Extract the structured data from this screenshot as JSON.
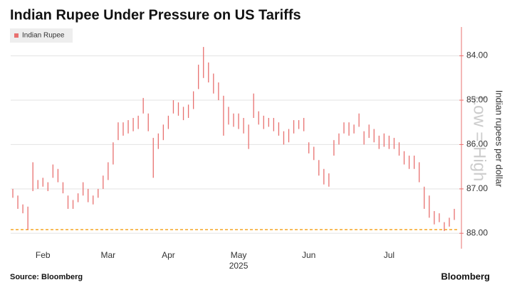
{
  "chart_data": {
    "type": "range-bar",
    "title": "Indian Rupee Under Pressure on US Tariffs",
    "source": "Source: Bloomberg",
    "logo": "Bloomberg",
    "y_label": "Indian rupees per dollar",
    "watermark": "Low = High",
    "year_label": "2025",
    "y_inverted": true,
    "ylim": [
      83.35,
      88.3
    ],
    "yticks": [
      {
        "value": 84,
        "label": "84.00"
      },
      {
        "value": 85,
        "label": "85.00"
      },
      {
        "value": 86,
        "label": "86.00"
      },
      {
        "value": 87,
        "label": "87.00"
      },
      {
        "value": 88,
        "label": "88.00"
      }
    ],
    "grid": true,
    "reference_line": {
      "value": 87.92,
      "color": "#f5a623"
    },
    "categories": [
      null,
      null,
      null,
      null,
      null,
      null,
      "Feb",
      null,
      null,
      null,
      null,
      null,
      null,
      null,
      null,
      null,
      null,
      null,
      null,
      "Mar",
      null,
      null,
      null,
      null,
      null,
      null,
      null,
      null,
      null,
      null,
      null,
      "Apr",
      null,
      null,
      null,
      null,
      null,
      null,
      null,
      null,
      null,
      null,
      null,
      null,
      null,
      "May",
      null,
      null,
      null,
      null,
      null,
      null,
      null,
      null,
      null,
      null,
      null,
      null,
      null,
      "Jun",
      null,
      null,
      null,
      null,
      null,
      null,
      null,
      null,
      null,
      null,
      null,
      null,
      null,
      null,
      null,
      "Jul",
      null,
      null,
      null,
      null,
      null,
      null,
      null,
      null,
      null,
      null,
      null,
      null,
      null
    ],
    "series": [
      {
        "name": "Indian Rupee",
        "color": "#e8706f",
        "high": [
          87.2,
          87.45,
          87.55,
          87.92,
          87.05,
          87.0,
          86.95,
          87.05,
          86.75,
          86.85,
          87.1,
          87.45,
          87.45,
          87.3,
          87.15,
          87.3,
          87.35,
          87.2,
          87.0,
          86.8,
          86.45,
          85.9,
          85.8,
          85.75,
          85.7,
          85.65,
          85.3,
          85.7,
          86.75,
          86.1,
          85.9,
          85.65,
          85.3,
          85.35,
          85.45,
          85.4,
          85.2,
          84.75,
          84.5,
          84.6,
          84.85,
          85.0,
          85.8,
          85.55,
          85.6,
          85.65,
          85.75,
          86.1,
          85.4,
          85.55,
          85.65,
          85.6,
          85.7,
          85.8,
          86.0,
          85.95,
          85.75,
          85.65,
          85.7,
          86.2,
          86.35,
          86.7,
          86.9,
          86.95,
          86.25,
          86.0,
          85.75,
          85.8,
          85.75,
          85.6,
          86.0,
          85.85,
          85.95,
          86.1,
          86.05,
          86.1,
          86.1,
          86.25,
          86.45,
          86.55,
          86.55,
          86.85,
          87.45,
          87.65,
          87.8,
          87.75,
          87.95,
          87.85,
          87.7
        ],
        "low": [
          87.0,
          87.15,
          87.35,
          87.4,
          86.4,
          86.8,
          86.75,
          86.85,
          86.45,
          86.55,
          86.85,
          87.15,
          87.25,
          87.1,
          86.85,
          87.0,
          87.15,
          87.0,
          86.7,
          86.4,
          85.95,
          85.5,
          85.5,
          85.45,
          85.4,
          85.35,
          84.95,
          85.3,
          85.85,
          85.75,
          85.55,
          85.35,
          85.0,
          85.05,
          85.15,
          85.1,
          84.8,
          84.2,
          83.8,
          84.15,
          84.4,
          84.6,
          84.9,
          85.15,
          85.3,
          85.3,
          85.4,
          85.55,
          84.85,
          85.25,
          85.35,
          85.4,
          85.4,
          85.5,
          85.7,
          85.65,
          85.45,
          85.45,
          85.4,
          85.95,
          86.05,
          86.35,
          86.55,
          86.65,
          85.9,
          85.75,
          85.5,
          85.5,
          85.55,
          85.3,
          85.7,
          85.55,
          85.65,
          85.8,
          85.75,
          85.8,
          85.85,
          85.95,
          86.15,
          86.25,
          86.25,
          86.4,
          86.95,
          87.15,
          87.5,
          87.55,
          87.75,
          87.65,
          87.45
        ]
      }
    ]
  }
}
